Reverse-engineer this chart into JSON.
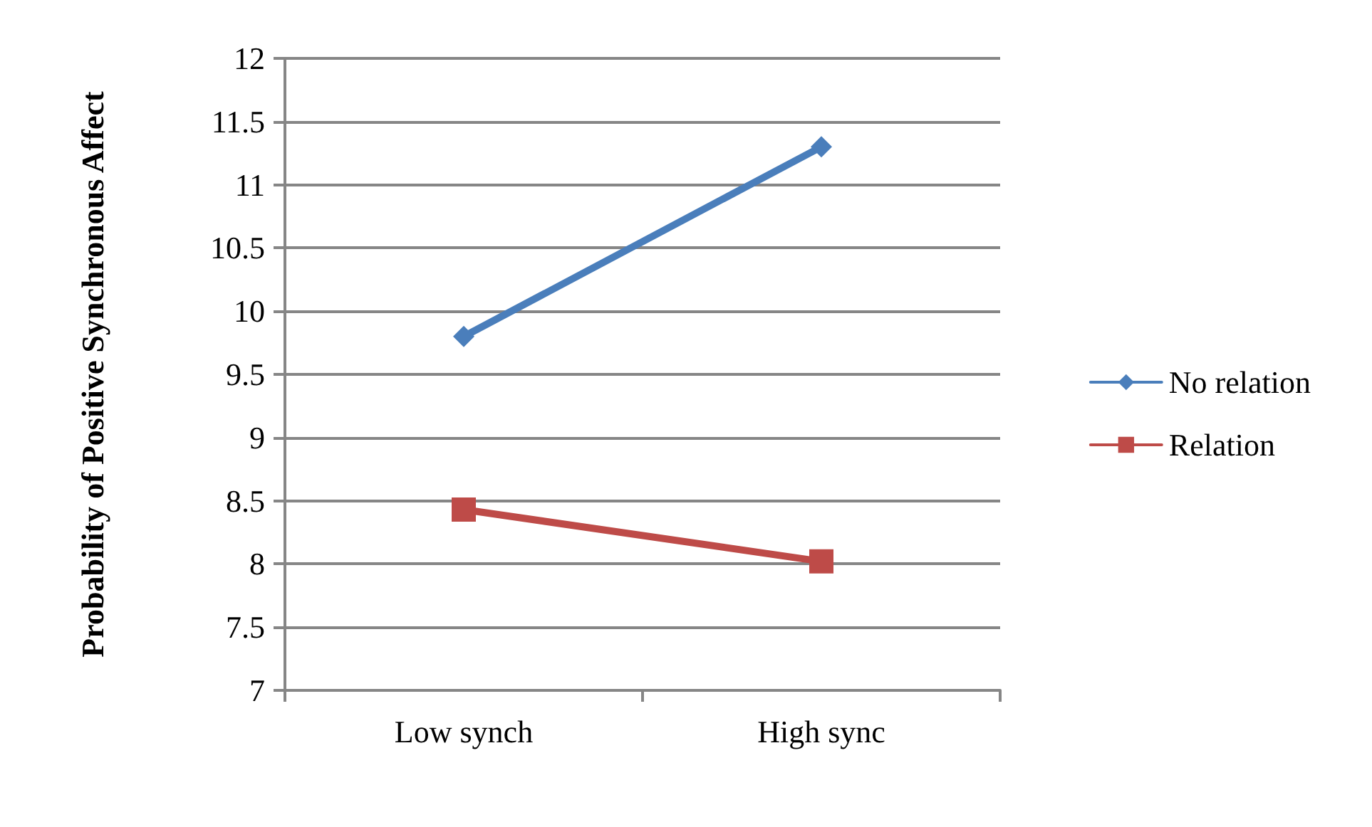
{
  "chart_data": {
    "type": "line",
    "ylabel": "Probability of Positive Synchronous Affect",
    "categories": [
      "Low synch",
      "High sync"
    ],
    "series": [
      {
        "name": "No relation",
        "color": "#4a7ebb",
        "values": [
          9.8,
          11.3
        ],
        "marker": "diamond"
      },
      {
        "name": "Relation",
        "color": "#be4b48",
        "values": [
          8.43,
          8.02
        ],
        "marker": "square"
      }
    ],
    "ylim": [
      7,
      12
    ],
    "yticks": [
      7,
      7.5,
      8,
      8.5,
      9,
      9.5,
      10,
      10.5,
      11,
      11.5,
      12
    ],
    "grid": "y",
    "legend": "right",
    "line_style": "solid"
  }
}
